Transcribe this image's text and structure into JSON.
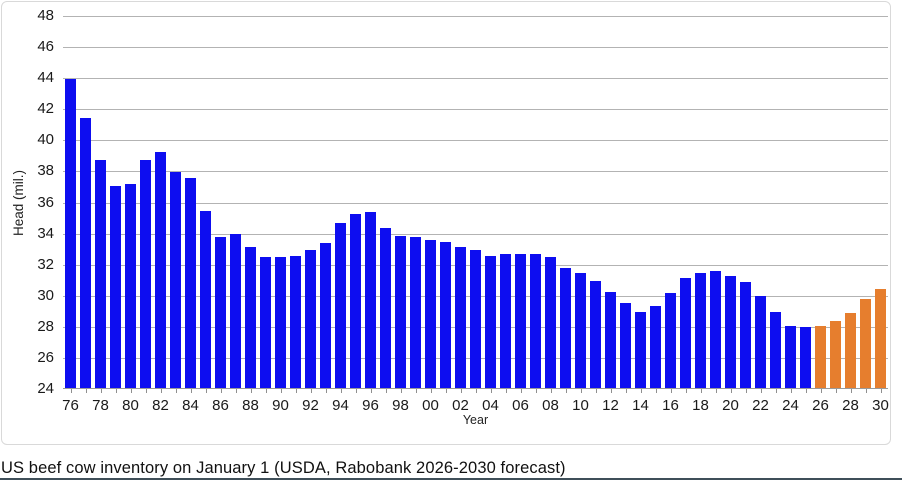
{
  "figure": {
    "caption": "US beef cow inventory on January 1 (USDA, Rabobank 2026-2030 forecast)"
  },
  "chart_data": {
    "type": "bar",
    "title": "US beef cow inventory on January 1 (USDA, Rabobank 2026-2030 forecast)",
    "xlabel": "Year",
    "ylabel": "Head (mil.)",
    "ylim": [
      24,
      48
    ],
    "ytick_step": 2,
    "xtick_label_every": 2,
    "grid": true,
    "legend": "none",
    "categories": [
      "76",
      "77",
      "78",
      "79",
      "80",
      "81",
      "82",
      "83",
      "84",
      "85",
      "86",
      "87",
      "88",
      "89",
      "90",
      "91",
      "92",
      "93",
      "94",
      "95",
      "96",
      "97",
      "98",
      "99",
      "00",
      "01",
      "02",
      "03",
      "04",
      "05",
      "06",
      "07",
      "08",
      "09",
      "10",
      "11",
      "12",
      "13",
      "14",
      "15",
      "16",
      "17",
      "18",
      "19",
      "20",
      "21",
      "22",
      "23",
      "24",
      "25",
      "26",
      "27",
      "28",
      "29",
      "30"
    ],
    "values": [
      43.9,
      41.4,
      38.7,
      37.0,
      37.1,
      38.7,
      39.2,
      37.9,
      37.5,
      35.4,
      33.7,
      33.9,
      33.1,
      32.4,
      32.4,
      32.5,
      32.9,
      33.3,
      34.6,
      35.2,
      35.3,
      34.3,
      33.8,
      33.7,
      33.5,
      33.4,
      33.1,
      32.9,
      32.5,
      32.6,
      32.6,
      32.6,
      32.4,
      31.7,
      31.4,
      30.9,
      30.2,
      29.5,
      28.9,
      29.3,
      30.1,
      31.1,
      31.4,
      31.5,
      31.2,
      30.8,
      29.9,
      28.9,
      28.0,
      27.9,
      28.0,
      28.3,
      28.8,
      29.7,
      30.4
    ],
    "forecast_start_category": "26",
    "forecast_start_index": 50,
    "colors": {
      "actual": "#0d0df0",
      "forecast": "#e67e2e",
      "gridline": "#b3b3b3",
      "axis_line": "#9a9a9a"
    }
  }
}
